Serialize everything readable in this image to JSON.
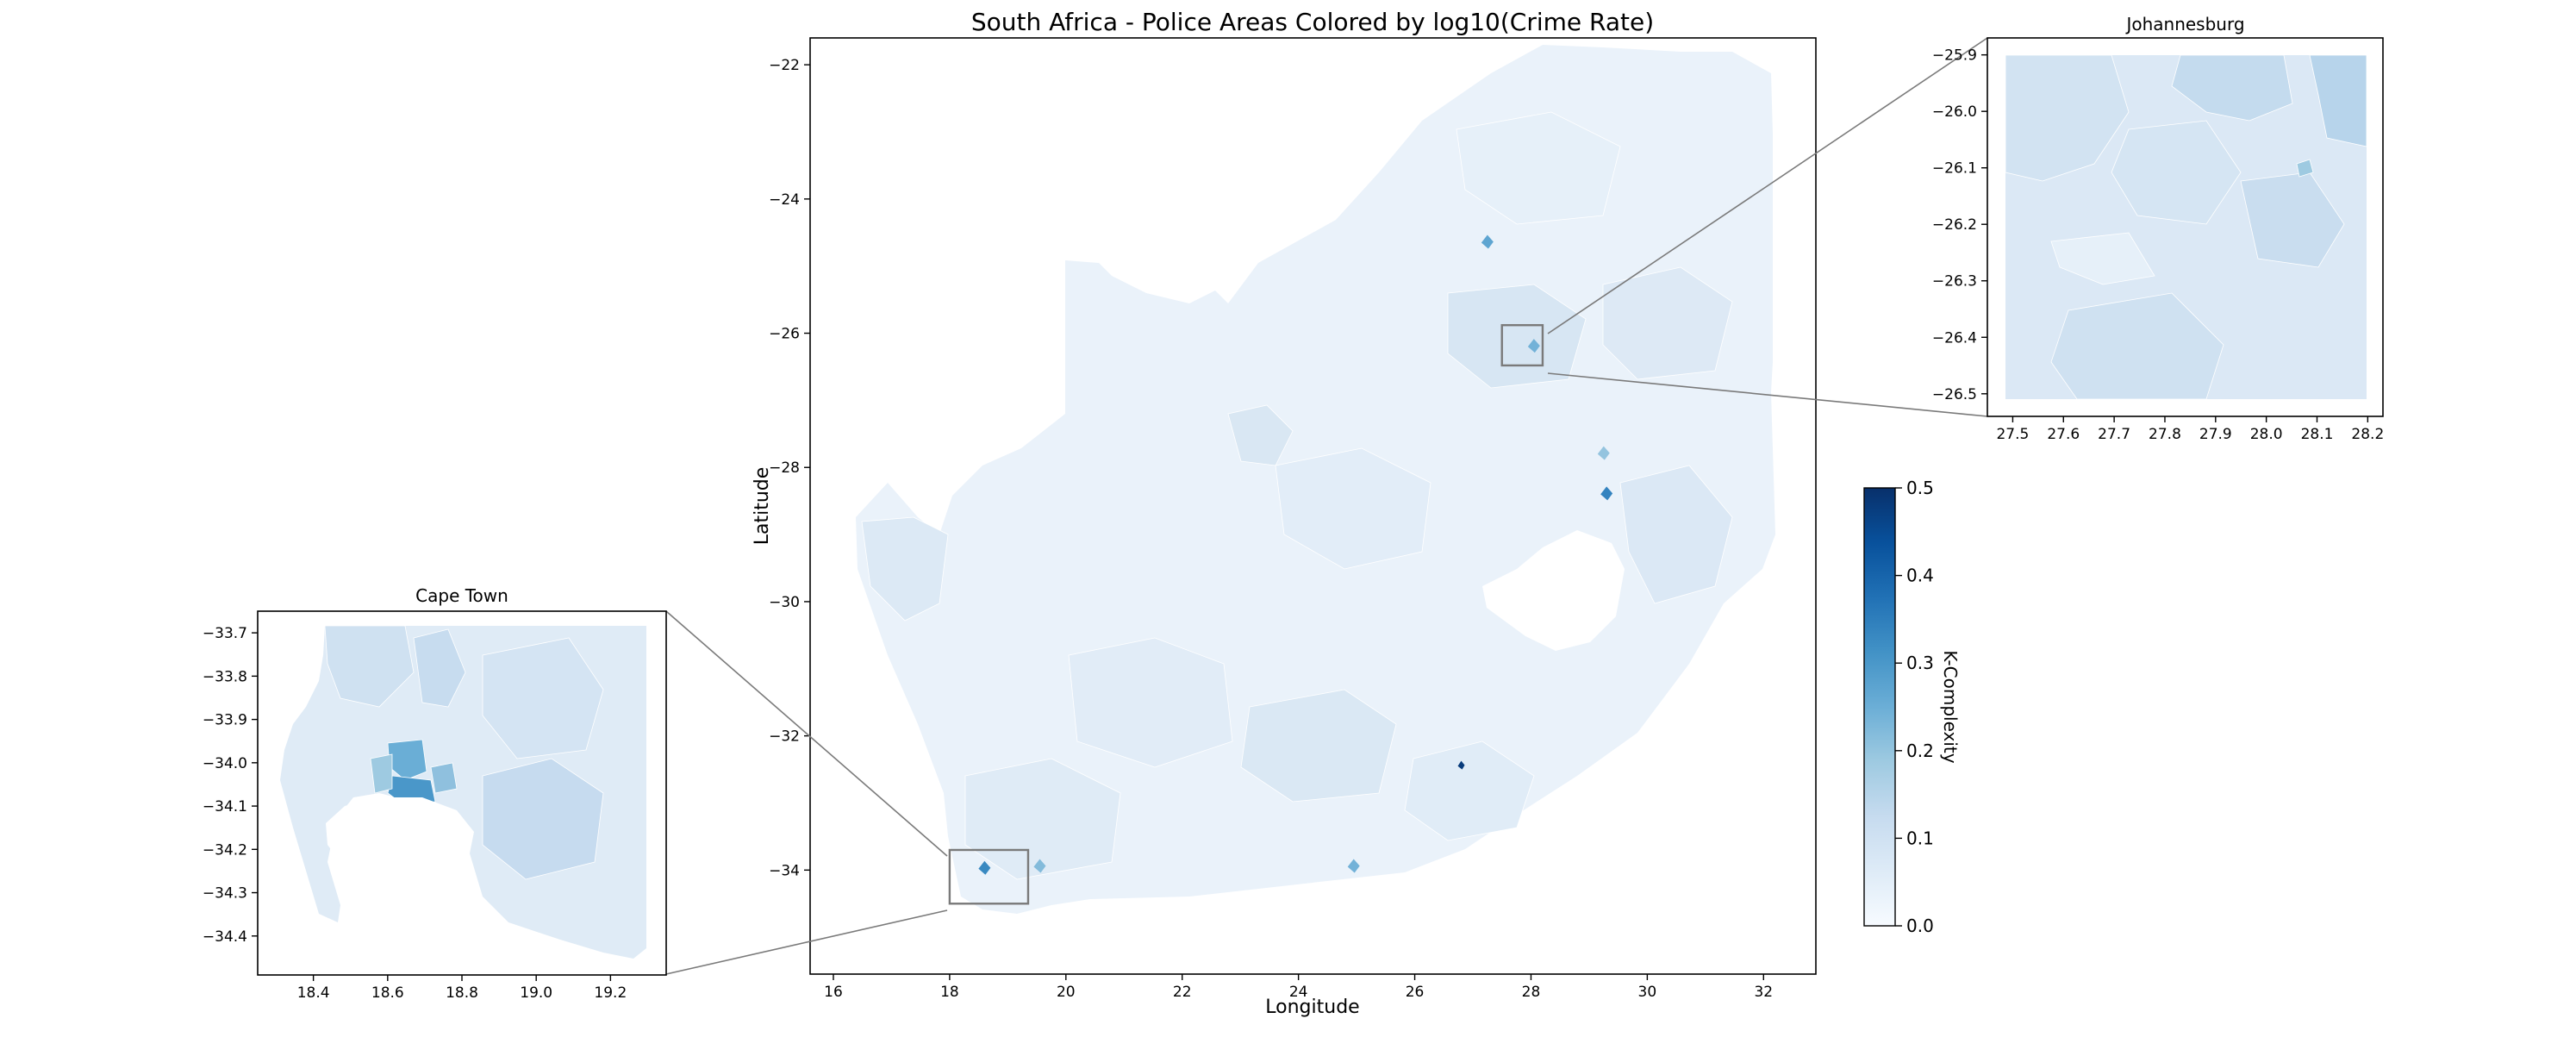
{
  "main": {
    "title": "South Africa - Police Areas Colored by log10(Crime Rate)",
    "xlabel": "Longitude",
    "ylabel": "Latitude",
    "xlim": [
      15.6,
      32.9
    ],
    "ylim": [
      -35.55,
      -21.6
    ],
    "xticks": [
      16,
      18,
      20,
      22,
      24,
      26,
      28,
      30,
      32
    ],
    "yticks": [
      -22,
      -24,
      -26,
      -28,
      -30,
      -32,
      -34
    ],
    "xtick_labels": [
      "16",
      "18",
      "20",
      "22",
      "24",
      "26",
      "28",
      "30",
      "32"
    ],
    "ytick_labels": [
      "−22",
      "−24",
      "−26",
      "−28",
      "−30",
      "−32",
      "−34"
    ],
    "inset_boxes": [
      {
        "name": "Cape Town",
        "lon": [
          18.0,
          19.35
        ],
        "lat": [
          -34.5,
          -33.7
        ]
      },
      {
        "name": "Johannesburg",
        "lon": [
          27.5,
          28.2
        ],
        "lat": [
          -26.48,
          -25.88
        ]
      }
    ]
  },
  "insets": {
    "cape_town": {
      "title": "Cape Town",
      "xlim": [
        18.25,
        19.35
      ],
      "ylim": [
        -34.49,
        -33.65
      ],
      "xticks": [
        18.4,
        18.6,
        18.8,
        19.0,
        19.2
      ],
      "yticks": [
        -33.7,
        -33.8,
        -33.9,
        -34.0,
        -34.1,
        -34.2,
        -34.3,
        -34.4
      ],
      "xtick_labels": [
        "18.4",
        "18.6",
        "18.8",
        "19.0",
        "19.2"
      ],
      "ytick_labels": [
        "−33.7",
        "−33.8",
        "−33.9",
        "−34.0",
        "−34.1",
        "−34.2",
        "−34.3",
        "−34.4"
      ]
    },
    "johannesburg": {
      "title": "Johannesburg",
      "xlim": [
        27.45,
        28.23
      ],
      "ylim": [
        -26.54,
        -25.87
      ],
      "xticks": [
        27.5,
        27.6,
        27.7,
        27.8,
        27.9,
        28.0,
        28.1,
        28.2
      ],
      "yticks": [
        -25.9,
        -26.0,
        -26.1,
        -26.2,
        -26.3,
        -26.4,
        -26.5
      ],
      "xtick_labels": [
        "27.5",
        "27.6",
        "27.7",
        "27.8",
        "27.9",
        "28.0",
        "28.1",
        "28.2"
      ],
      "ytick_labels": [
        "−25.9",
        "−26.0",
        "−26.1",
        "−26.2",
        "−26.3",
        "−26.4",
        "−26.5"
      ]
    }
  },
  "colorbar": {
    "label": "K-Complexity",
    "range": [
      0.0,
      0.5
    ],
    "ticks": [
      0.0,
      0.1,
      0.2,
      0.3,
      0.4,
      0.5
    ],
    "tick_labels": [
      "0.0",
      "0.1",
      "0.2",
      "0.3",
      "0.4",
      "0.5"
    ],
    "colormap": "Blues",
    "stops": [
      "#f7fbff",
      "#deebf7",
      "#c6dbef",
      "#9ecae1",
      "#6baed6",
      "#4292c6",
      "#2171b5",
      "#08519c",
      "#08306b"
    ]
  },
  "chart_data": {
    "type": "choropleth",
    "colormap": "Blues",
    "value_range": [
      0.0,
      0.5
    ],
    "typical_value_range": [
      0.02,
      0.12
    ],
    "hotspots": [
      {
        "lon": 27.25,
        "lat": -24.65,
        "value": 0.27
      },
      {
        "lon": 29.3,
        "lat": -28.4,
        "value": 0.34
      },
      {
        "lon": 26.8,
        "lat": -32.45,
        "value": 0.48
      },
      {
        "lon": 29.25,
        "lat": -27.8,
        "value": 0.2
      },
      {
        "lon": 19.55,
        "lat": -33.95,
        "value": 0.22
      },
      {
        "lon": 24.95,
        "lat": -33.95,
        "value": 0.24
      },
      {
        "lon": 28.05,
        "lat": -26.2,
        "value": 0.24
      },
      {
        "lon": 18.6,
        "lat": -33.98,
        "value": 0.33
      }
    ]
  }
}
